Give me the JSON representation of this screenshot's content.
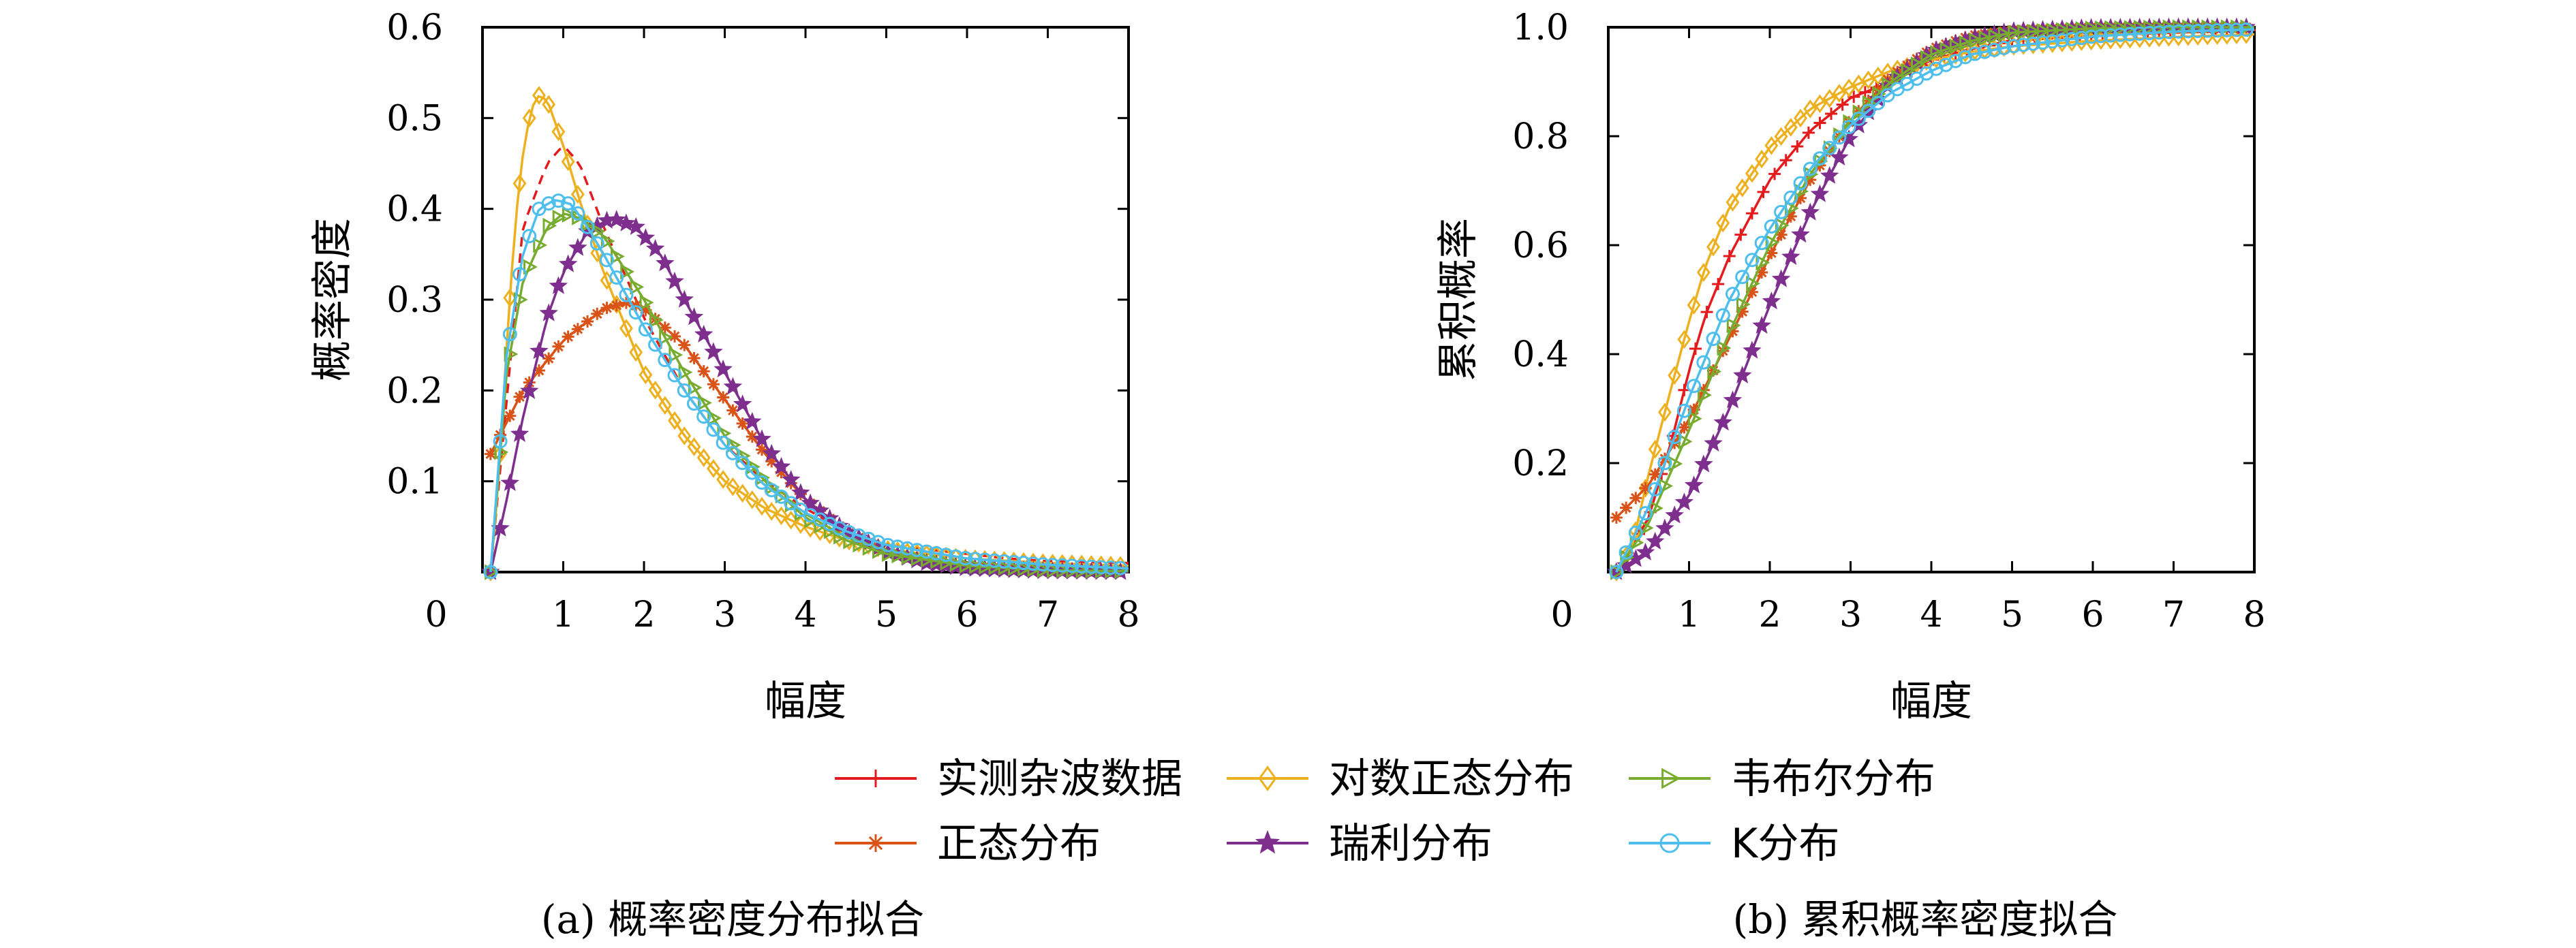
{
  "chart_data": [
    {
      "type": "line",
      "caption": "(a) 概率密度分布拟合",
      "xlabel": "幅度",
      "ylabel": "概率密度",
      "xlim": [
        0,
        8
      ],
      "ylim": [
        0,
        0.6
      ],
      "xticks": [
        "0",
        "1",
        "2",
        "3",
        "4",
        "5",
        "6",
        "7",
        "8"
      ],
      "yticks": [
        "0.1",
        "0.2",
        "0.3",
        "0.4",
        "0.5",
        "0.6"
      ],
      "grid": false,
      "series": [
        {
          "name": "实测杂波数据",
          "x": [
            0.1,
            0.5,
            0.8,
            1.0,
            1.2,
            1.5,
            2.0,
            2.5,
            3.0,
            3.5,
            4.0,
            4.5,
            5.0,
            5.5,
            6.0,
            6.5,
            7.0,
            8.0
          ],
          "y": [
            0.0,
            0.38,
            0.45,
            0.47,
            0.45,
            0.38,
            0.28,
            0.2,
            0.14,
            0.1,
            0.07,
            0.045,
            0.03,
            0.025,
            0.02,
            0.015,
            0.012,
            0.01
          ]
        },
        {
          "name": "对数正态分布",
          "x": [
            0.1,
            0.2,
            0.3,
            0.4,
            0.5,
            0.6,
            0.7,
            0.8,
            1.0,
            1.2,
            1.5,
            2.0,
            2.5,
            3.0,
            3.5,
            4.0,
            4.5,
            5.0,
            6.0,
            7.0,
            8.0
          ],
          "y": [
            0.0,
            0.1,
            0.25,
            0.38,
            0.46,
            0.51,
            0.525,
            0.52,
            0.47,
            0.41,
            0.33,
            0.22,
            0.15,
            0.1,
            0.07,
            0.05,
            0.035,
            0.025,
            0.015,
            0.01,
            0.007
          ]
        },
        {
          "name": "正态分布",
          "x": [
            0.1,
            0.5,
            1.0,
            1.5,
            1.8,
            2.0,
            2.5,
            3.0,
            3.5,
            4.0,
            4.5,
            5.0,
            5.5,
            6.0,
            7.0,
            8.0
          ],
          "y": [
            0.13,
            0.2,
            0.255,
            0.29,
            0.297,
            0.29,
            0.25,
            0.19,
            0.13,
            0.08,
            0.045,
            0.023,
            0.012,
            0.007,
            0.003,
            0.001
          ]
        },
        {
          "name": "瑞利分布",
          "x": [
            0.1,
            0.3,
            0.5,
            0.8,
            1.0,
            1.3,
            1.6,
            1.9,
            2.2,
            2.5,
            3.0,
            3.5,
            4.0,
            4.5,
            5.0,
            5.5,
            6.0,
            7.0,
            8.0
          ],
          "y": [
            0.0,
            0.08,
            0.17,
            0.28,
            0.33,
            0.375,
            0.39,
            0.38,
            0.35,
            0.3,
            0.22,
            0.14,
            0.08,
            0.045,
            0.022,
            0.01,
            0.004,
            0.001,
            0.0
          ]
        },
        {
          "name": "韦布尔分布",
          "x": [
            0.1,
            0.3,
            0.5,
            0.8,
            1.0,
            1.2,
            1.5,
            2.0,
            2.5,
            3.0,
            3.5,
            4.0,
            4.5,
            5.0,
            6.0,
            7.0,
            8.0
          ],
          "y": [
            0.0,
            0.22,
            0.32,
            0.38,
            0.395,
            0.39,
            0.37,
            0.3,
            0.22,
            0.15,
            0.1,
            0.06,
            0.035,
            0.02,
            0.007,
            0.002,
            0.001
          ]
        },
        {
          "name": "K分布",
          "x": [
            0.1,
            0.3,
            0.5,
            0.7,
            0.9,
            1.1,
            1.3,
            1.5,
            2.0,
            2.5,
            3.0,
            3.5,
            4.0,
            4.5,
            5.0,
            6.0,
            7.0,
            8.0
          ],
          "y": [
            0.0,
            0.24,
            0.35,
            0.4,
            0.41,
            0.405,
            0.38,
            0.35,
            0.27,
            0.2,
            0.14,
            0.095,
            0.065,
            0.045,
            0.03,
            0.015,
            0.008,
            0.004
          ]
        }
      ]
    },
    {
      "type": "line",
      "caption": "(b) 累积概率密度拟合",
      "xlabel": "幅度",
      "ylabel": "累积概率",
      "xlim": [
        0,
        8
      ],
      "ylim": [
        0,
        1.0
      ],
      "xticks": [
        "0",
        "1",
        "2",
        "3",
        "4",
        "5",
        "6",
        "7",
        "8"
      ],
      "yticks": [
        "0.2",
        "0.4",
        "0.6",
        "0.8",
        "1.0"
      ],
      "grid": false,
      "series": [
        {
          "name": "实测杂波数据",
          "x": [
            0.1,
            0.5,
            0.8,
            1.0,
            1.2,
            1.5,
            2.0,
            2.5,
            3.0,
            3.5,
            4.0,
            4.5,
            5.0,
            6.0,
            7.0,
            8.0
          ],
          "y": [
            0.0,
            0.1,
            0.25,
            0.37,
            0.47,
            0.58,
            0.72,
            0.81,
            0.87,
            0.9,
            0.94,
            0.96,
            0.975,
            0.985,
            0.99,
            0.995
          ]
        },
        {
          "name": "对数正态分布",
          "x": [
            0.1,
            0.3,
            0.5,
            0.8,
            1.0,
            1.2,
            1.5,
            2.0,
            2.5,
            3.0,
            3.5,
            4.0,
            4.5,
            5.0,
            6.0,
            7.0,
            8.0
          ],
          "y": [
            0.0,
            0.05,
            0.18,
            0.35,
            0.46,
            0.56,
            0.67,
            0.78,
            0.85,
            0.89,
            0.92,
            0.94,
            0.955,
            0.965,
            0.975,
            0.982,
            0.987
          ]
        },
        {
          "name": "正态分布",
          "x": [
            0.1,
            0.5,
            1.0,
            1.5,
            2.0,
            2.5,
            3.0,
            3.5,
            4.0,
            4.5,
            5.0,
            6.0,
            7.0,
            8.0
          ],
          "y": [
            0.1,
            0.16,
            0.28,
            0.43,
            0.58,
            0.72,
            0.83,
            0.91,
            0.96,
            0.985,
            0.995,
            1.0,
            1.0,
            1.0
          ]
        },
        {
          "name": "瑞利分布",
          "x": [
            0.1,
            0.5,
            1.0,
            1.5,
            2.0,
            2.5,
            3.0,
            3.5,
            4.0,
            4.5,
            5.0,
            6.0,
            7.0,
            8.0
          ],
          "y": [
            0.0,
            0.04,
            0.14,
            0.3,
            0.49,
            0.66,
            0.8,
            0.9,
            0.955,
            0.98,
            0.993,
            0.999,
            1.0,
            1.0
          ]
        },
        {
          "name": "韦布尔分布",
          "x": [
            0.1,
            0.5,
            1.0,
            1.5,
            2.0,
            2.5,
            3.0,
            3.5,
            4.0,
            4.5,
            5.0,
            6.0,
            7.0,
            8.0
          ],
          "y": [
            0.0,
            0.09,
            0.26,
            0.44,
            0.6,
            0.73,
            0.83,
            0.9,
            0.95,
            0.975,
            0.99,
            0.998,
            1.0,
            1.0
          ]
        },
        {
          "name": "K分布",
          "x": [
            0.1,
            0.5,
            1.0,
            1.5,
            2.0,
            2.5,
            3.0,
            3.5,
            4.0,
            4.5,
            5.0,
            6.0,
            7.0,
            8.0
          ],
          "y": [
            0.0,
            0.12,
            0.32,
            0.5,
            0.63,
            0.74,
            0.82,
            0.88,
            0.92,
            0.95,
            0.965,
            0.983,
            0.992,
            0.996
          ]
        }
      ]
    }
  ],
  "legend": {
    "placement": "bottom-center",
    "items": [
      {
        "label": "实测杂波数据",
        "color": "#e41a1c",
        "marker": "plus"
      },
      {
        "label": "对数正态分布",
        "color": "#edb120",
        "marker": "diamond"
      },
      {
        "label": "韦布尔分布",
        "color": "#77ac30",
        "marker": "triangle-right"
      },
      {
        "label": "正态分布",
        "color": "#d95319",
        "marker": "asterisk"
      },
      {
        "label": "瑞利分布",
        "color": "#7e2f8e",
        "marker": "star"
      },
      {
        "label": "K分布",
        "color": "#4dbeee",
        "marker": "circle"
      }
    ]
  }
}
